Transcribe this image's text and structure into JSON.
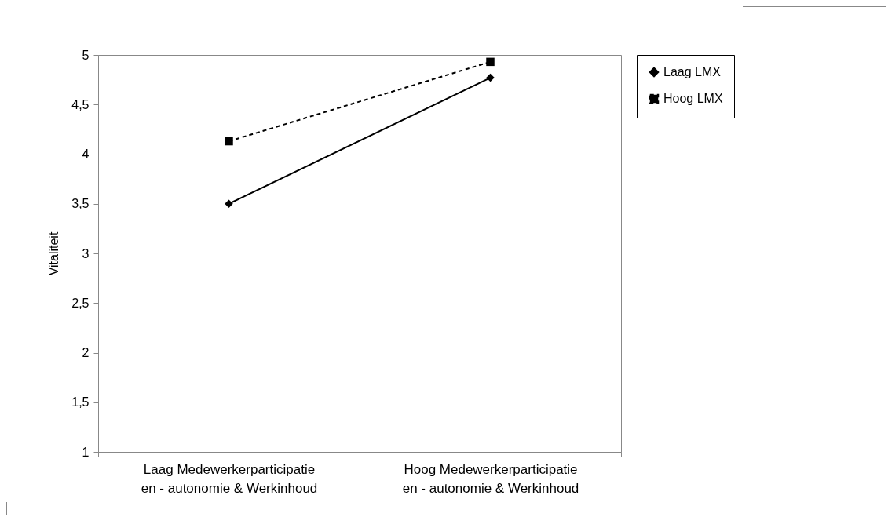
{
  "chart_data": {
    "type": "line",
    "ylabel": "Vitaliteit",
    "categories": [
      "Laag Medewerkerparticipatie en - autonomie & Werkinhoud",
      "Hoog Medewerkerparticipatie en - autonomie & Werkinhoud"
    ],
    "series": [
      {
        "name": "Laag LMX",
        "color": "#000000",
        "marker": "diamond",
        "line_style": "solid",
        "values": [
          3.5,
          4.77
        ]
      },
      {
        "name": "Hoog LMX",
        "color": "#000000",
        "marker": "square",
        "line_style": "dashed",
        "values": [
          4.13,
          4.93
        ]
      }
    ],
    "ylim": [
      1,
      5
    ],
    "yticks": [
      {
        "value": 1,
        "label": "1"
      },
      {
        "value": 1.5,
        "label": "1,5"
      },
      {
        "value": 2,
        "label": "2"
      },
      {
        "value": 2.5,
        "label": "2,5"
      },
      {
        "value": 3,
        "label": "3"
      },
      {
        "value": 3.5,
        "label": "3,5"
      },
      {
        "value": 4,
        "label": "4"
      },
      {
        "value": 4.5,
        "label": "4,5"
      },
      {
        "value": 5,
        "label": "5"
      }
    ],
    "grid": false,
    "legend": "right"
  }
}
